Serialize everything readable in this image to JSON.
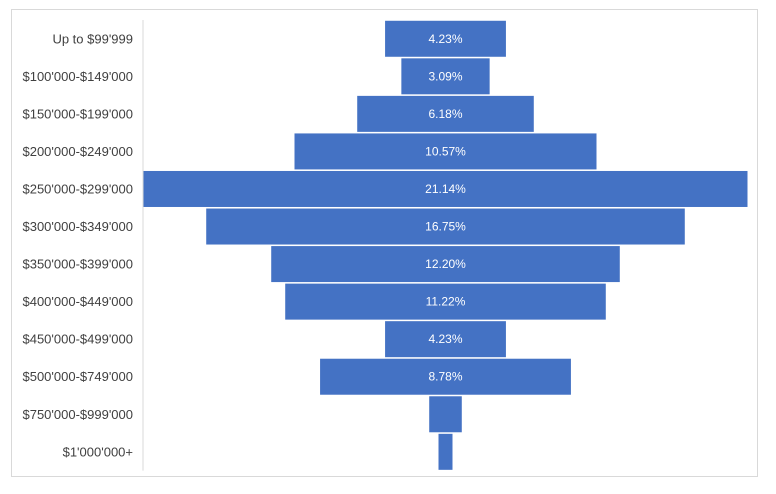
{
  "chart_data": {
    "type": "bar",
    "orientation": "horizontal-centered",
    "categories": [
      "Up to $99'999",
      "$100'000-$149'000",
      "$150'000-$199'000",
      "$200'000-$249'000",
      "$250'000-$299'000",
      "$300'000-$349'000",
      "$350'000-$399'000",
      "$400'000-$449'000",
      "$450'000-$499'000",
      "$500'000-$749'000",
      "$750'000-$999'000",
      "$1'000'000+"
    ],
    "values": [
      4.23,
      3.09,
      6.18,
      10.57,
      21.14,
      16.75,
      12.2,
      11.22,
      4.23,
      8.78,
      1.14,
      0.49
    ],
    "data_labels": [
      "4.23%",
      "3.09%",
      "6.18%",
      "10.57%",
      "21.14%",
      "16.75%",
      "12.20%",
      "11.22%",
      "4.23%",
      "8.78%",
      "",
      ""
    ],
    "bar_color": "#4472C4",
    "grid": false,
    "legend": "none"
  }
}
